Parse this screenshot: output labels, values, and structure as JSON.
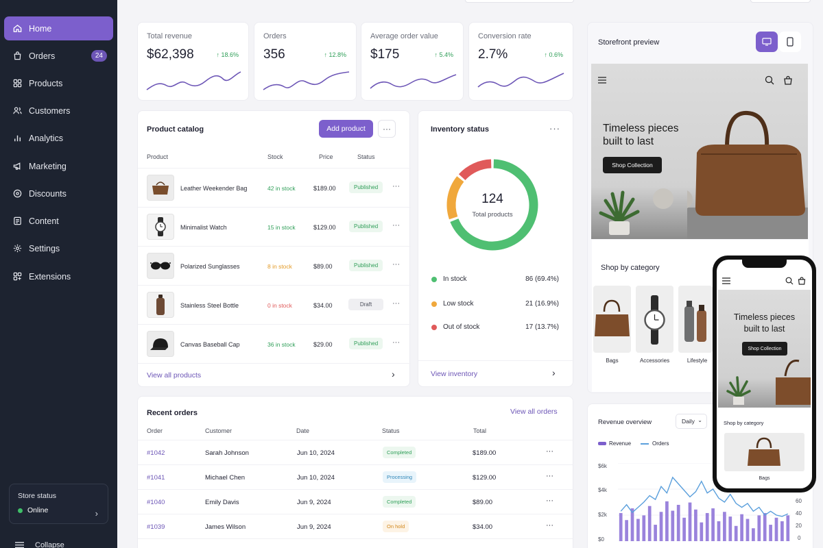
{
  "sidebar": {
    "items": [
      {
        "label": "Home",
        "icon": "home-icon",
        "active": true
      },
      {
        "label": "Orders",
        "icon": "shopping-bag-icon",
        "badge": "24"
      },
      {
        "label": "Products",
        "icon": "grid-icon"
      },
      {
        "label": "Customers",
        "icon": "users-icon"
      },
      {
        "label": "Analytics",
        "icon": "bar-chart-icon"
      },
      {
        "label": "Marketing",
        "icon": "megaphone-icon"
      },
      {
        "label": "Discounts",
        "icon": "discount-icon"
      },
      {
        "label": "Content",
        "icon": "document-icon"
      },
      {
        "label": "Settings",
        "icon": "gear-icon"
      },
      {
        "label": "Extensions",
        "icon": "puzzle-icon"
      }
    ],
    "store_status": {
      "label": "Store status",
      "value": "Online"
    },
    "collapse_label": "Collapse"
  },
  "kpis": [
    {
      "label": "Total revenue",
      "value": "$62,398",
      "change": "↑ 18.6%"
    },
    {
      "label": "Orders",
      "value": "356",
      "change": "↑ 12.8%"
    },
    {
      "label": "Average order value",
      "value": "$175",
      "change": "↑ 5.4%"
    },
    {
      "label": "Conversion rate",
      "value": "2.7%",
      "change": "↑ 0.6%"
    }
  ],
  "catalog": {
    "title": "Product catalog",
    "add_label": "Add product",
    "headers": {
      "product": "Product",
      "stock": "Stock",
      "price": "Price",
      "status": "Status"
    },
    "rows": [
      {
        "name": "Leather Weekender Bag",
        "stock": "42 in stock",
        "price": "$189.00",
        "status": "Published"
      },
      {
        "name": "Minimalist Watch",
        "stock": "15 in stock",
        "price": "$129.00",
        "status": "Published"
      },
      {
        "name": "Polarized Sunglasses",
        "stock": "8 in stock",
        "price": "$89.00",
        "status": "Published"
      },
      {
        "name": "Stainless Steel Bottle",
        "stock": "0 in stock",
        "price": "$34.00",
        "status": "Draft"
      },
      {
        "name": "Canvas Baseball Cap",
        "stock": "36 in stock",
        "price": "$29.00",
        "status": "Published"
      }
    ],
    "view_all": "View all products"
  },
  "inventory": {
    "title": "Inventory status",
    "total": "124",
    "total_label": "Total products",
    "segments": [
      {
        "label": "In stock",
        "value": "86 (69.4%)",
        "count": 86,
        "color": "#4fbf72"
      },
      {
        "label": "Low stock",
        "value": "21 (16.9%)",
        "count": 21,
        "color": "#f0a83c"
      },
      {
        "label": "Out of stock",
        "value": "17 (13.7%)",
        "count": 17,
        "color": "#e05a5a"
      }
    ],
    "view_link": "View inventory"
  },
  "orders": {
    "title": "Recent orders",
    "view_all": "View all orders",
    "headers": {
      "order": "Order",
      "customer": "Customer",
      "date": "Date",
      "status": "Status",
      "total": "Total"
    },
    "rows": [
      {
        "id": "#1042",
        "customer": "Sarah Johnson",
        "date": "Jun 10, 2024",
        "status": "Completed",
        "total": "$189.00"
      },
      {
        "id": "#1041",
        "customer": "Michael Chen",
        "date": "Jun 10, 2024",
        "status": "Processing",
        "total": "$129.00"
      },
      {
        "id": "#1040",
        "customer": "Emily Davis",
        "date": "Jun 9, 2024",
        "status": "Completed",
        "total": "$89.00"
      },
      {
        "id": "#1039",
        "customer": "James Wilson",
        "date": "Jun 9, 2024",
        "status": "On hold",
        "total": "$34.00"
      }
    ]
  },
  "storefront": {
    "title": "Storefront preview",
    "hero_title_line1": "Timeless pieces",
    "hero_title_line2": "built to last",
    "hero_button": "Shop Collection",
    "categories_title": "Shop by category",
    "categories": [
      "Bags",
      "Accessories",
      "Lifestyle"
    ]
  },
  "phone": {
    "hero_title_line1": "Timeless pieces",
    "hero_title_line2": "built to last",
    "hero_button": "Shop Collection",
    "categories_title": "Shop by category",
    "category": "Bags"
  },
  "revenue": {
    "title": "Revenue overview",
    "range": "Daily",
    "legend": {
      "revenue": "Revenue",
      "orders": "Orders"
    },
    "y_left": [
      "$6k",
      "$4k",
      "$2k",
      "$0"
    ],
    "y_right": [
      "60",
      "40",
      "20",
      "0"
    ]
  },
  "chart_data": {
    "type": "bar",
    "series": [
      {
        "name": "Revenue",
        "kind": "line",
        "values": [
          2.3,
          2.8,
          2.2,
          2.6,
          3.0,
          3.5,
          3.2,
          4.2,
          3.7,
          4.9,
          4.4,
          3.9,
          3.4,
          3.8,
          4.6,
          3.7,
          4.0,
          3.3,
          3.0,
          3.6,
          2.9,
          2.6,
          2.9,
          2.3,
          2.6,
          2.0,
          2.3,
          2.0,
          1.9,
          2.1
        ]
      },
      {
        "name": "Orders",
        "kind": "bar",
        "values": [
          24,
          18,
          28,
          19,
          22,
          30,
          14,
          25,
          34,
          26,
          31,
          20,
          33,
          27,
          16,
          24,
          28,
          17,
          25,
          21,
          13,
          23,
          19,
          11,
          22,
          24,
          14,
          20,
          17,
          22
        ]
      }
    ],
    "ylim": [
      0,
      6
    ],
    "ylim_right": [
      0,
      60
    ]
  },
  "colors": {
    "accent": "#7c5fcc",
    "sidebar": "#1d2330",
    "success": "#2f9e58",
    "warning": "#e39b29",
    "danger": "#e05a5a"
  }
}
